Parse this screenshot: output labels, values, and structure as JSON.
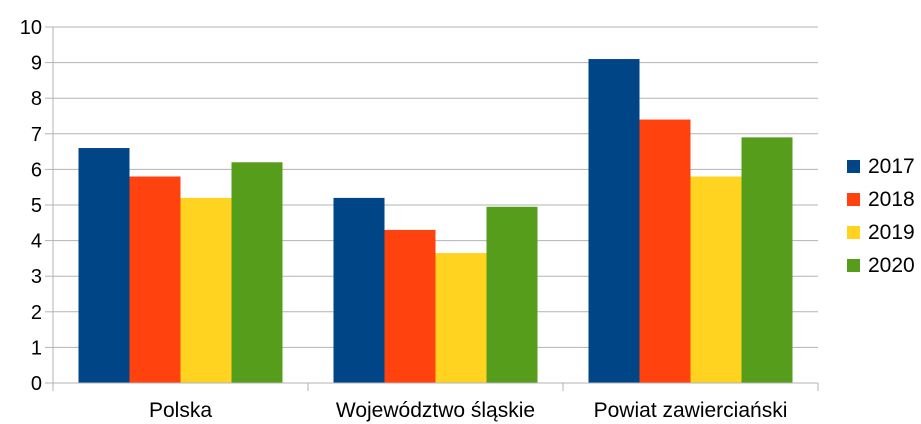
{
  "chart_data": {
    "type": "bar",
    "title": "",
    "xlabel": "",
    "ylabel": "",
    "ylim": [
      0,
      10
    ],
    "yticks": [
      0,
      1,
      2,
      3,
      4,
      5,
      6,
      7,
      8,
      9,
      10
    ],
    "grid": true,
    "legend_position": "right",
    "categories": [
      "Polska",
      "Województwo śląskie",
      "Powiat zawierciański"
    ],
    "series": [
      {
        "name": "2017",
        "color": "#004586",
        "values": [
          6.6,
          5.2,
          9.1
        ]
      },
      {
        "name": "2018",
        "color": "#ff420e",
        "values": [
          5.8,
          4.3,
          7.4
        ]
      },
      {
        "name": "2019",
        "color": "#ffd320",
        "values": [
          5.2,
          3.65,
          5.8
        ]
      },
      {
        "name": "2020",
        "color": "#579d1c",
        "values": [
          6.2,
          4.95,
          6.9
        ]
      }
    ]
  }
}
